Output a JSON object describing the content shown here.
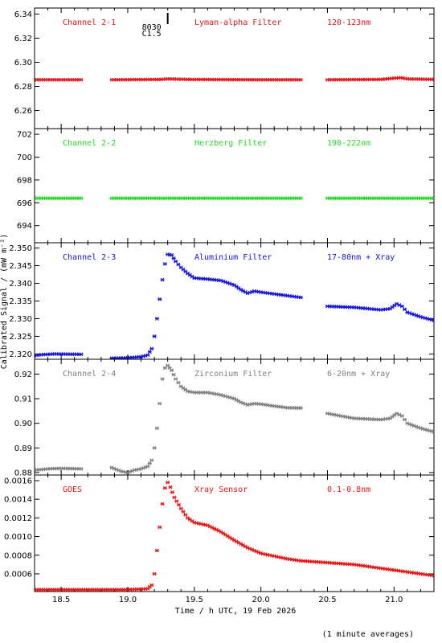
{
  "figure": {
    "xlabel": "Time / h UTC, 19 Feb 2026",
    "ylabel": "Calibrated Signal / (mW m",
    "ylabel_units": "⁻²)",
    "footnote": "(1 minute averages)",
    "event_marker": {
      "time": 19.3,
      "labels": [
        "8030",
        "C1.5"
      ]
    },
    "xlim": [
      18.3,
      21.3
    ],
    "xticks": [
      "18.5",
      "19.0",
      "19.5",
      "20.0",
      "20.5",
      "21.0"
    ]
  },
  "chart_data": [
    {
      "type": "scatter",
      "label_left": "Channel 2-1",
      "label_mid": "Lyman-alpha Filter",
      "label_right": "120-123nm",
      "color": "#e81414",
      "ylim": [
        6.245,
        6.345
      ],
      "yticks": [
        "6.26",
        "6.28",
        "6.30",
        "6.32",
        "6.34"
      ],
      "series": [
        {
          "points": [
            [
              18.3,
              6.2855
            ],
            [
              18.65,
              6.2855
            ]
          ]
        },
        {
          "points": [
            [
              18.88,
              6.2855
            ],
            [
              19.25,
              6.2858
            ],
            [
              19.3,
              6.2862
            ],
            [
              19.45,
              6.2858
            ],
            [
              20.0,
              6.2855
            ],
            [
              20.3,
              6.2855
            ]
          ]
        },
        {
          "points": [
            [
              20.5,
              6.2855
            ],
            [
              20.9,
              6.2858
            ],
            [
              21.0,
              6.2868
            ],
            [
              21.05,
              6.2872
            ],
            [
              21.1,
              6.2862
            ],
            [
              21.3,
              6.2858
            ]
          ]
        }
      ]
    },
    {
      "type": "scatter",
      "label_left": "Channel 2-2",
      "label_mid": "Herzberg Filter",
      "label_right": "190-222nm",
      "color": "#22dd22",
      "ylim": [
        692.5,
        702.5
      ],
      "yticks": [
        "694",
        "696",
        "698",
        "700",
        "702"
      ],
      "series": [
        {
          "points": [
            [
              18.3,
              696.4
            ],
            [
              18.65,
              696.4
            ]
          ]
        },
        {
          "points": [
            [
              18.88,
              696.4
            ],
            [
              20.3,
              696.4
            ]
          ]
        },
        {
          "points": [
            [
              20.5,
              696.4
            ],
            [
              21.3,
              696.4
            ]
          ]
        }
      ]
    },
    {
      "type": "scatter",
      "label_left": "Channel 2-3",
      "label_mid": "Aluminium Filter",
      "label_right": "17-80nm + Xray",
      "color": "#1414dd",
      "ylim": [
        2.3185,
        2.3515
      ],
      "yticks": [
        "2.320",
        "2.325",
        "2.330",
        "2.335",
        "2.340",
        "2.345",
        "2.350"
      ],
      "series": [
        {
          "points": [
            [
              18.3,
              2.3195
            ],
            [
              18.35,
              2.3198
            ],
            [
              18.45,
              2.32
            ],
            [
              18.65,
              2.3199
            ]
          ]
        },
        {
          "points": [
            [
              18.88,
              2.3188
            ],
            [
              19.0,
              2.3189
            ],
            [
              19.1,
              2.3192
            ],
            [
              19.15,
              2.3197
            ],
            [
              19.18,
              2.3215
            ],
            [
              19.2,
              2.325
            ],
            [
              19.22,
              2.33
            ],
            [
              19.24,
              2.3355
            ],
            [
              19.26,
              2.341
            ],
            [
              19.28,
              2.3455
            ],
            [
              19.3,
              2.3482
            ],
            [
              19.33,
              2.348
            ],
            [
              19.36,
              2.3462
            ],
            [
              19.4,
              2.3445
            ],
            [
              19.45,
              2.3428
            ],
            [
              19.5,
              2.3415
            ],
            [
              19.6,
              2.3412
            ],
            [
              19.7,
              2.3408
            ],
            [
              19.8,
              2.3395
            ],
            [
              19.85,
              2.3382
            ],
            [
              19.9,
              2.3372
            ],
            [
              19.95,
              2.3378
            ],
            [
              20.0,
              2.3375
            ],
            [
              20.1,
              2.337
            ],
            [
              20.2,
              2.3365
            ],
            [
              20.3,
              2.336
            ]
          ]
        },
        {
          "points": [
            [
              20.5,
              2.3335
            ],
            [
              20.7,
              2.3332
            ],
            [
              20.9,
              2.3325
            ],
            [
              20.97,
              2.3328
            ],
            [
              21.02,
              2.3342
            ],
            [
              21.06,
              2.3335
            ],
            [
              21.1,
              2.3318
            ],
            [
              21.2,
              2.3305
            ],
            [
              21.3,
              2.3295
            ]
          ]
        }
      ]
    },
    {
      "type": "scatter",
      "label_left": "Channel 2-4",
      "label_mid": "Zirconium Filter",
      "label_right": "6-20nm + Xray",
      "color": "#808080",
      "ylim": [
        0.879,
        0.926
      ],
      "yticks": [
        "0.88",
        "0.89",
        "0.90",
        "0.91",
        "0.92"
      ],
      "series": [
        {
          "points": [
            [
              18.3,
              0.881
            ],
            [
              18.4,
              0.8815
            ],
            [
              18.5,
              0.8817
            ],
            [
              18.65,
              0.8815
            ]
          ]
        },
        {
          "points": [
            [
              18.88,
              0.882
            ],
            [
              18.95,
              0.8805
            ],
            [
              19.0,
              0.88
            ],
            [
              19.05,
              0.881
            ],
            [
              19.1,
              0.8815
            ],
            [
              19.15,
              0.8825
            ],
            [
              19.18,
              0.885
            ],
            [
              19.2,
              0.89
            ],
            [
              19.22,
              0.898
            ],
            [
              19.24,
              0.908
            ],
            [
              19.26,
              0.918
            ],
            [
              19.28,
              0.9225
            ],
            [
              19.3,
              0.9235
            ],
            [
              19.33,
              0.9215
            ],
            [
              19.36,
              0.918
            ],
            [
              19.4,
              0.915
            ],
            [
              19.45,
              0.913
            ],
            [
              19.5,
              0.9125
            ],
            [
              19.6,
              0.9125
            ],
            [
              19.7,
              0.9115
            ],
            [
              19.8,
              0.91
            ],
            [
              19.85,
              0.9085
            ],
            [
              19.9,
              0.9075
            ],
            [
              19.95,
              0.908
            ],
            [
              20.0,
              0.9078
            ],
            [
              20.1,
              0.907
            ],
            [
              20.2,
              0.9063
            ],
            [
              20.3,
              0.9062
            ]
          ]
        },
        {
          "points": [
            [
              20.5,
              0.904
            ],
            [
              20.7,
              0.902
            ],
            [
              20.9,
              0.9015
            ],
            [
              20.97,
              0.902
            ],
            [
              21.02,
              0.904
            ],
            [
              21.06,
              0.903
            ],
            [
              21.1,
              0.9
            ],
            [
              21.2,
              0.898
            ],
            [
              21.3,
              0.8965
            ]
          ]
        }
      ]
    },
    {
      "type": "scatter",
      "label_left": "GOES",
      "label_mid": "Xray Sensor",
      "label_right": "0.1-0.8nm",
      "color": "#e81414",
      "ylim": [
        0.00041,
        0.00166
      ],
      "yticks": [
        "0.0006",
        "0.0008",
        "0.0010",
        "0.0012",
        "0.0014",
        "0.0016"
      ],
      "series": [
        {
          "points": [
            [
              18.3,
              0.00043
            ],
            [
              18.6,
              0.00043
            ],
            [
              18.8,
              0.00043
            ],
            [
              19.0,
              0.00043
            ],
            [
              19.15,
              0.00044
            ],
            [
              19.18,
              0.00048
            ],
            [
              19.2,
              0.0006
            ],
            [
              19.22,
              0.00085
            ],
            [
              19.24,
              0.0011
            ],
            [
              19.26,
              0.00135
            ],
            [
              19.28,
              0.00152
            ],
            [
              19.3,
              0.00158
            ],
            [
              19.32,
              0.00153
            ],
            [
              19.35,
              0.00142
            ],
            [
              19.4,
              0.0013
            ],
            [
              19.45,
              0.0012
            ],
            [
              19.5,
              0.00115
            ],
            [
              19.6,
              0.00112
            ],
            [
              19.7,
              0.00105
            ],
            [
              19.8,
              0.00096
            ],
            [
              19.9,
              0.00088
            ],
            [
              20.0,
              0.00082
            ],
            [
              20.1,
              0.00079
            ],
            [
              20.2,
              0.00076
            ],
            [
              20.3,
              0.00074
            ],
            [
              20.5,
              0.00072
            ],
            [
              20.7,
              0.0007
            ],
            [
              20.9,
              0.00066
            ],
            [
              21.1,
              0.00062
            ],
            [
              21.3,
              0.00058
            ]
          ]
        }
      ]
    }
  ]
}
